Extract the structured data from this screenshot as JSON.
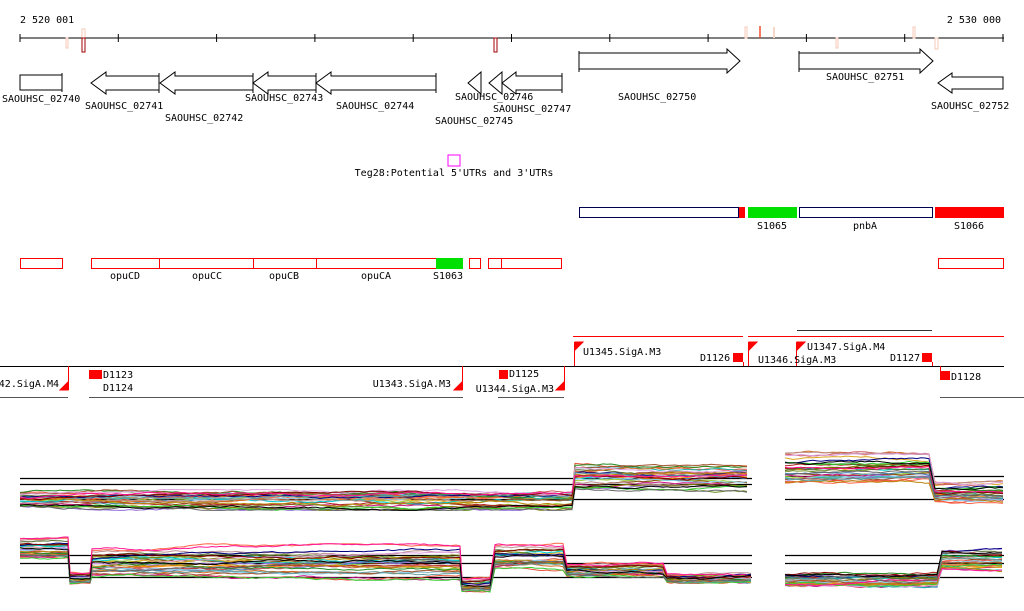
{
  "ruler": {
    "start_label": "2 520 001",
    "end_label": "2 530 000"
  },
  "genes": [
    {
      "id": "SAOUHSC_02740",
      "strand": "none"
    },
    {
      "id": "SAOUHSC_02741",
      "strand": "-"
    },
    {
      "id": "SAOUHSC_02742",
      "strand": "-"
    },
    {
      "id": "SAOUHSC_02743",
      "strand": "-"
    },
    {
      "id": "SAOUHSC_02744",
      "strand": "-"
    },
    {
      "id": "SAOUHSC_02745",
      "strand": "-"
    },
    {
      "id": "SAOUHSC_02746",
      "strand": "-"
    },
    {
      "id": "SAOUHSC_02747",
      "strand": "-"
    },
    {
      "id": "SAOUHSC_02750",
      "strand": "+"
    },
    {
      "id": "SAOUHSC_02751",
      "strand": "+"
    },
    {
      "id": "SAOUHSC_02752",
      "strand": "-"
    }
  ],
  "teg_feature": {
    "label": "Teg28:Potential 5'UTRs and 3'UTRs",
    "color": "#ff00ff"
  },
  "forward_segments": {
    "labels": [
      "S1065",
      "pnbA",
      "S1066"
    ]
  },
  "reverse_segments": {
    "labels": [
      "opuCD",
      "opuCC",
      "opuCB",
      "opuCA",
      "S1063"
    ]
  },
  "promoters": {
    "above": [
      "U1345.SigA.M3",
      "D1126",
      "U1346.SigA.M3",
      "U1347.SigA.M4",
      "D1127"
    ],
    "below": [
      "42.SigA.M4",
      "D1123",
      "D1124",
      "U1343.SigA.M3",
      "U1344.SigA.M3",
      "D1125",
      "D1128"
    ]
  },
  "colors": {
    "segment_red": "#ff0000",
    "segment_green": "#00e000",
    "outline_blue": "#0000c0",
    "pale_mark": "#f7c8b8",
    "dark_mark": "#a00000"
  },
  "expression": {
    "series_count": 30
  }
}
